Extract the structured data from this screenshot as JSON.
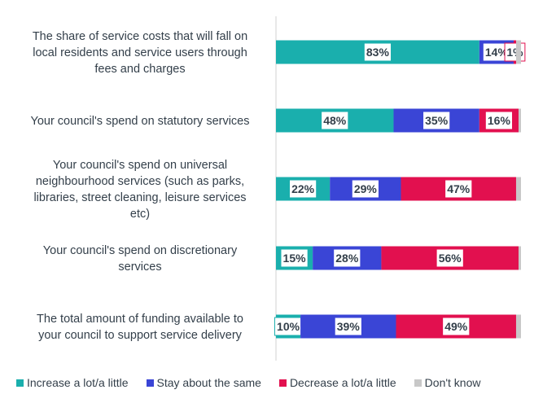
{
  "chart_data": {
    "type": "bar",
    "orientation": "horizontal-stacked-100",
    "categories": [
      [
        "The share of service costs that will fall on",
        "local residents and service users through",
        "fees and charges"
      ],
      [
        "Your council's spend on statutory services"
      ],
      [
        "Your council's spend on universal",
        "neighbourhood services (such as parks,",
        "libraries, street cleaning, leisure services",
        "etc)"
      ],
      [
        "Your council's spend on discretionary",
        "services"
      ],
      [
        "The total amount of funding available to",
        "your council to support service delivery"
      ]
    ],
    "series": [
      {
        "name": "Increase a lot/a little",
        "color": "#1aafad",
        "values": [
          83,
          48,
          22,
          15,
          10
        ]
      },
      {
        "name": "Stay about the same",
        "color": "#3a45d6",
        "values": [
          14,
          35,
          29,
          28,
          39
        ]
      },
      {
        "name": "Decrease a lot/a little",
        "color": "#e2104f",
        "values": [
          1,
          16,
          47,
          56,
          49
        ]
      },
      {
        "name": "Don't know",
        "color": "#c8c8c8",
        "values": [
          2,
          1,
          2,
          1,
          2
        ]
      }
    ],
    "value_labels": [
      [
        "83%",
        "14%",
        "1%",
        ""
      ],
      [
        "48%",
        "35%",
        "16%",
        ""
      ],
      [
        "22%",
        "29%",
        "47%",
        ""
      ],
      [
        "15%",
        "28%",
        "56%",
        ""
      ],
      [
        "10%",
        "39%",
        "49%",
        ""
      ]
    ],
    "legend_position": "bottom",
    "grid": false
  }
}
